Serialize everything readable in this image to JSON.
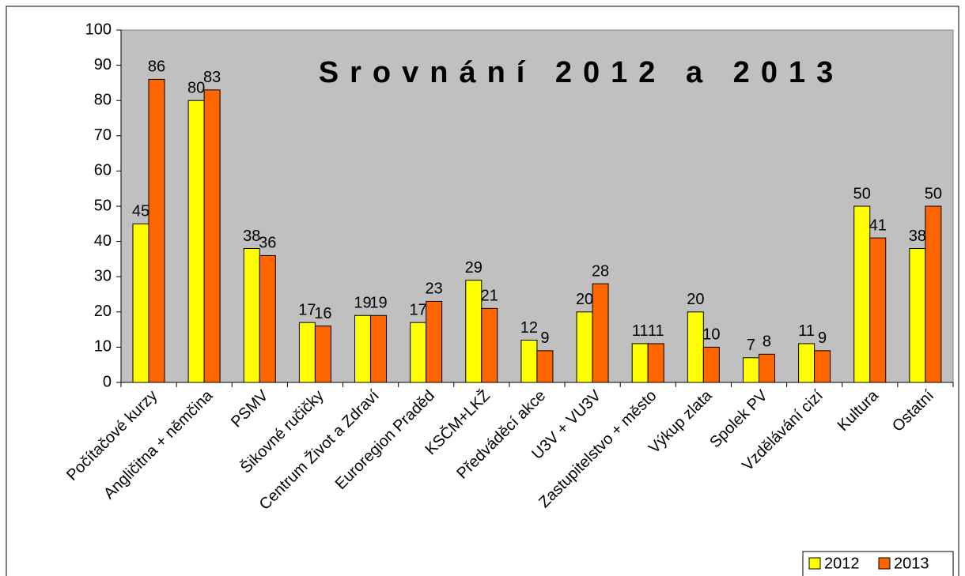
{
  "chart_data": {
    "type": "bar",
    "title": "Srovnání 2012 a 2013",
    "categories": [
      "Počítačové kurzy",
      "Angličitna + němčina",
      "PSMV",
      "Šikovné ručičky",
      "Centrum Život a Zdraví",
      "Euroregion Praděd",
      "KSČM+LKŽ",
      "Předváděcí akce",
      "U3V + VU3V",
      "Zastupitelstvo + město",
      "Výkup zlata",
      "Spolek PV",
      "Vzdělávání cizí",
      "Kultura",
      "Ostatní"
    ],
    "series": [
      {
        "name": "2012",
        "color": "#ffff00",
        "values": [
          45,
          80,
          38,
          17,
          19,
          17,
          29,
          12,
          20,
          11,
          20,
          7,
          11,
          50,
          38
        ]
      },
      {
        "name": "2013",
        "color": "#ff6600",
        "values": [
          86,
          83,
          36,
          16,
          19,
          23,
          21,
          9,
          28,
          11,
          10,
          8,
          9,
          41,
          50
        ]
      }
    ],
    "ylim": [
      0,
      100
    ],
    "yticks": [
      0,
      10,
      20,
      30,
      40,
      50,
      60,
      70,
      80,
      90,
      100
    ],
    "grid": false,
    "legend": "bottom-right",
    "plot_background": "#c0c0c0"
  }
}
